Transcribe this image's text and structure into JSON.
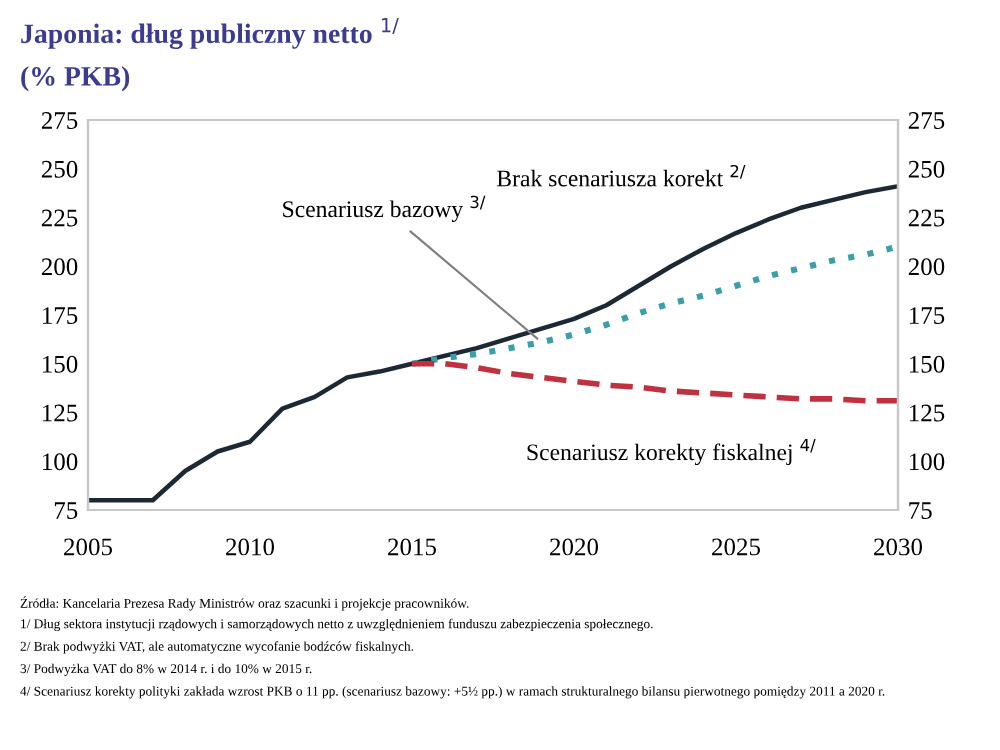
{
  "chart_data": {
    "type": "line",
    "title": "Japonia: dług publiczny netto $^{1/}$",
    "subtitle": "(% PKB)",
    "xlim": [
      2005,
      2030
    ],
    "xticks": [
      2005,
      2010,
      2015,
      2020,
      2025,
      2030
    ],
    "ylim": [
      75,
      275
    ],
    "yticks": [
      75,
      100,
      125,
      150,
      175,
      200,
      225,
      250,
      275
    ],
    "y2lim": [
      75,
      275
    ],
    "y2ticks": [
      75,
      100,
      125,
      150,
      175,
      200,
      225,
      250,
      275
    ],
    "grid": false,
    "legend": false,
    "series": [
      {
        "name": "Brak scenariusza korekt $^{2/}$",
        "color": "#1c2833",
        "line_style": "solid",
        "x": [
          2005,
          2006,
          2007,
          2008,
          2009,
          2010,
          2011,
          2012,
          2013,
          2014,
          2015,
          2016,
          2017,
          2018,
          2019,
          2020,
          2021,
          2022,
          2023,
          2024,
          2025,
          2026,
          2027,
          2028,
          2029,
          2030
        ],
        "values": [
          80,
          80,
          80,
          95,
          105,
          110,
          127,
          133,
          143,
          146,
          150,
          154,
          158,
          163,
          168,
          173,
          180,
          190,
          200,
          209,
          217,
          224,
          230,
          234,
          238,
          241
        ]
      },
      {
        "name": "Scenariusz bazowy $^{3/}$",
        "color": "#3a9fa8",
        "line_style": "dotted",
        "x": [
          2015,
          2016,
          2017,
          2018,
          2019,
          2020,
          2021,
          2022,
          2023,
          2024,
          2025,
          2026,
          2027,
          2028,
          2029,
          2030
        ],
        "values": [
          150,
          153,
          155,
          158,
          161,
          165,
          170,
          176,
          181,
          185,
          190,
          195,
          199,
          203,
          206,
          210
        ]
      },
      {
        "name": "Scenariusz korekty fiskalnej $^{4/}$",
        "color": "#c0303f",
        "line_style": "dashed",
        "x": [
          2015,
          2016,
          2017,
          2018,
          2019,
          2020,
          2021,
          2022,
          2023,
          2024,
          2025,
          2026,
          2027,
          2028,
          2029,
          2030
        ],
        "values": [
          150,
          150,
          148,
          145,
          143,
          141,
          139,
          138,
          136,
          135,
          134,
          133,
          132,
          132,
          131,
          131
        ]
      }
    ],
    "annotations": [
      "Źródła: Kancelaria Prezesa Rady Ministrów oraz szacunki i projekcje pracowników.",
      "1/ Dług sektora instytucji rządowych i samorządowych netto z uwzględnieniem funduszu zabezpieczenia społecznego.",
      "2/ Brak podwyżki VAT, ale automatyczne wycofanie bodźców fiskalnych.",
      "3/ Podwyżka VAT do 8% w 2014 r. i do 10% w 2015 r.",
      "4/ Scenariusz korekty polityki zakłada wzrost PKB o 11 pp. (scenariusz bazowy: +5½ pp.) w ramach strukturalnego bilansu pierwotnego pomiędzy 2011 a 2020 r."
    ]
  }
}
